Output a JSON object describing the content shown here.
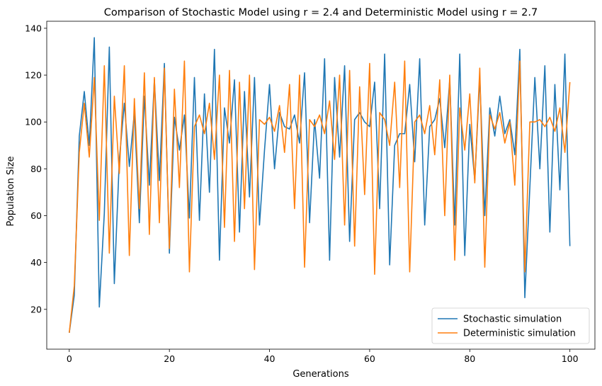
{
  "chart_data": {
    "type": "line",
    "title": "Comparison of Stochastic Model using r = 2.4 and Deterministic Model using r = 2.7",
    "xlabel": "Generations",
    "ylabel": "Population Size",
    "xlim": [
      -4.5,
      105
    ],
    "ylim": [
      3,
      143
    ],
    "xticks": [
      0,
      20,
      40,
      60,
      80,
      100
    ],
    "yticks": [
      20,
      40,
      60,
      80,
      100,
      120,
      140
    ],
    "grid": false,
    "legend_position": "lower-right",
    "series": [
      {
        "name": "Stochastic simulation",
        "color": "#1f77b4",
        "values": [
          10,
          26,
          94,
          113,
          90,
          136,
          21,
          61,
          132,
          31,
          84,
          108,
          81,
          104,
          57,
          111,
          73,
          118,
          75,
          125,
          44,
          102,
          88,
          103,
          59,
          119,
          58,
          112,
          70,
          131,
          41,
          106,
          91,
          118,
          53,
          113,
          68,
          119,
          56,
          88,
          116,
          80,
          104,
          98,
          97,
          103,
          91,
          121,
          57,
          101,
          76,
          127,
          41,
          119,
          85,
          124,
          49,
          101,
          104,
          100,
          98,
          117,
          63,
          129,
          39,
          90,
          95,
          95,
          116,
          83,
          127,
          56,
          98,
          101,
          110,
          89,
          118,
          56,
          129,
          43,
          99,
          75,
          119,
          60,
          106,
          94,
          111,
          95,
          101,
          86,
          131,
          25,
          72,
          119,
          80,
          124,
          53,
          116,
          71,
          129,
          47
        ]
      },
      {
        "name": "Deterministic simulation",
        "color": "#ff7f0e",
        "values": [
          10,
          30,
          87,
          108,
          85,
          119,
          58,
          124,
          44,
          111,
          78,
          124,
          43,
          110,
          63,
          121,
          52,
          119,
          57,
          123,
          46,
          114,
          72,
          126,
          36,
          98,
          103,
          95,
          108,
          84,
          120,
          55,
          122,
          49,
          117,
          63,
          120,
          37,
          101,
          99,
          102,
          96,
          107,
          87,
          116,
          63,
          120,
          38,
          101,
          98,
          103,
          95,
          109,
          84,
          120,
          56,
          122,
          47,
          115,
          69,
          125,
          35,
          104,
          101,
          90,
          117,
          72,
          126,
          36,
          100,
          103,
          95,
          107,
          86,
          118,
          60,
          120,
          41,
          106,
          88,
          112,
          74,
          123,
          38,
          103,
          97,
          104,
          91,
          100,
          73,
          126,
          36,
          100,
          100,
          101,
          98,
          102,
          96,
          106,
          87,
          117
        ]
      }
    ]
  }
}
